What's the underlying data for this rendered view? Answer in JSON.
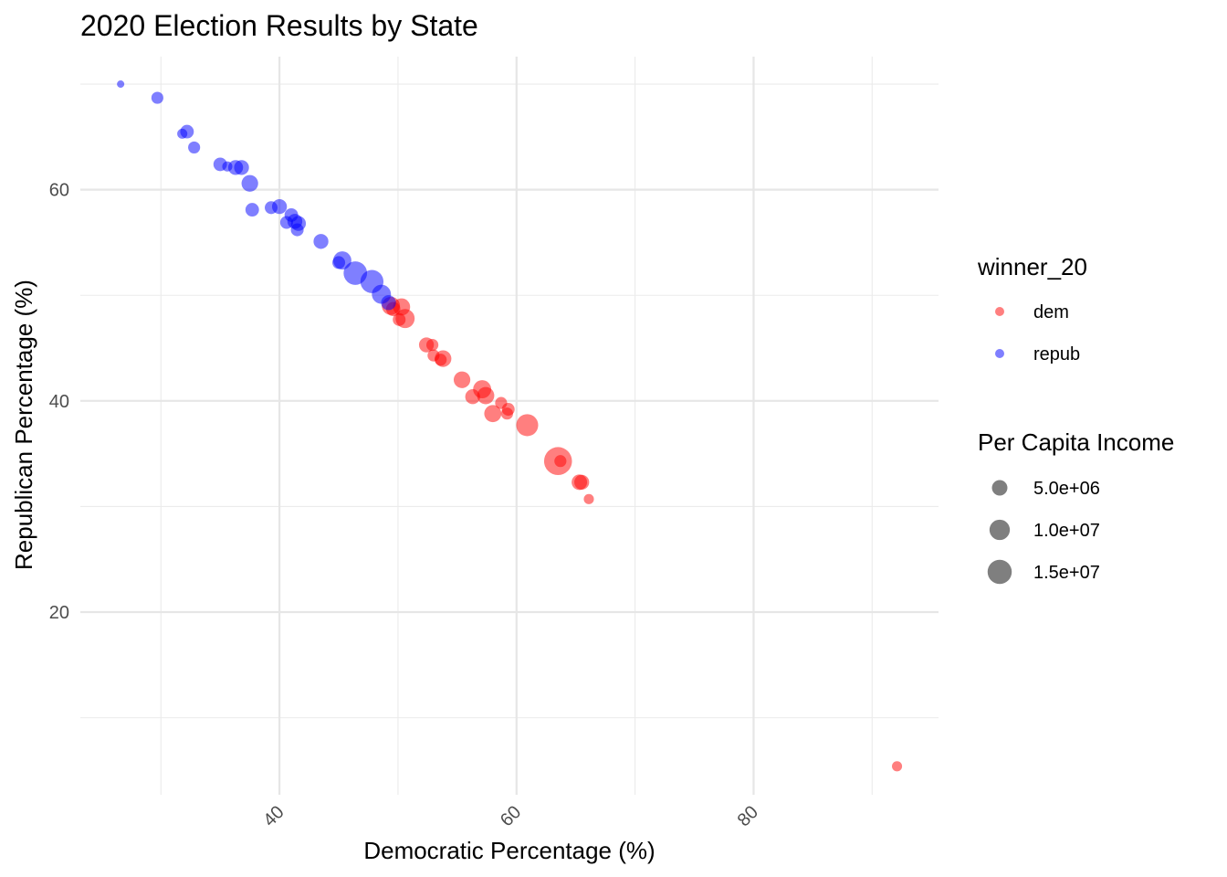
{
  "chart_data": {
    "type": "scatter",
    "title": "2020 Election Results by State",
    "xlabel": "Democratic Percentage (%)",
    "ylabel": "Republican Percentage (%)",
    "xlim": [
      23.2,
      95.6
    ],
    "ylim": [
      2.7,
      72.6
    ],
    "x_ticks": [
      40,
      60,
      80
    ],
    "x_tick_labels": [
      "40",
      "60",
      "80"
    ],
    "x_minor_ticks": [
      30,
      50,
      70,
      90
    ],
    "y_ticks": [
      20,
      40,
      60
    ],
    "y_tick_labels": [
      "20",
      "40",
      "60"
    ],
    "y_minor_ticks": [
      10,
      30,
      50,
      70
    ],
    "grid": true,
    "size_unit": "millions",
    "color_legend": {
      "title": "winner_20",
      "placement": "right",
      "entries": [
        {
          "label": "dem",
          "color": "#ff0000"
        },
        {
          "label": "repub",
          "color": "#0000ff"
        }
      ]
    },
    "size_legend": {
      "title": "Per Capita Income",
      "placement": "right",
      "entries": [
        {
          "label": "5.0e+06",
          "value": 5
        },
        {
          "label": "1.0e+07",
          "value": 10
        },
        {
          "label": "1.5e+07",
          "value": 15
        }
      ]
    },
    "series": [
      {
        "name": "dem",
        "color": "#ff0000",
        "points": [
          {
            "x": 49.4,
            "y": 49.0,
            "size": 7.5
          },
          {
            "x": 50.3,
            "y": 48.9,
            "size": 6.5
          },
          {
            "x": 50.6,
            "y": 47.8,
            "size": 8.5
          },
          {
            "x": 50.1,
            "y": 47.7,
            "size": 3.0
          },
          {
            "x": 49.6,
            "y": 48.7,
            "size": 4.0
          },
          {
            "x": 52.4,
            "y": 45.3,
            "size": 4.5
          },
          {
            "x": 52.9,
            "y": 45.3,
            "size": 2.5
          },
          {
            "x": 53.0,
            "y": 44.3,
            "size": 2.5
          },
          {
            "x": 53.6,
            "y": 43.9,
            "size": 2.5
          },
          {
            "x": 53.8,
            "y": 44.0,
            "size": 6.0
          },
          {
            "x": 55.4,
            "y": 42.0,
            "size": 6.0
          },
          {
            "x": 56.3,
            "y": 40.4,
            "size": 4.5
          },
          {
            "x": 57.1,
            "y": 41.1,
            "size": 7.5
          },
          {
            "x": 57.4,
            "y": 40.5,
            "size": 6.5
          },
          {
            "x": 58.0,
            "y": 38.8,
            "size": 6.5
          },
          {
            "x": 58.7,
            "y": 39.8,
            "size": 2.5
          },
          {
            "x": 59.3,
            "y": 39.2,
            "size": 3.0
          },
          {
            "x": 59.2,
            "y": 38.8,
            "size": 2.5
          },
          {
            "x": 60.9,
            "y": 37.7,
            "size": 12.0
          },
          {
            "x": 63.5,
            "y": 34.3,
            "size": 21.0
          },
          {
            "x": 63.7,
            "y": 34.3,
            "size": 2.5
          },
          {
            "x": 65.3,
            "y": 32.3,
            "size": 5.0
          },
          {
            "x": 65.5,
            "y": 32.3,
            "size": 4.5
          },
          {
            "x": 66.1,
            "y": 30.7,
            "size": 1.5
          },
          {
            "x": 92.1,
            "y": 5.4,
            "size": 1.5
          }
        ]
      },
      {
        "name": "repub",
        "color": "#0000ff",
        "points": [
          {
            "x": 26.6,
            "y": 70.0,
            "size": 0.5
          },
          {
            "x": 29.7,
            "y": 68.7,
            "size": 2.5
          },
          {
            "x": 31.8,
            "y": 65.3,
            "size": 1.5
          },
          {
            "x": 32.2,
            "y": 65.5,
            "size": 3.5
          },
          {
            "x": 32.8,
            "y": 64.0,
            "size": 2.5
          },
          {
            "x": 35.0,
            "y": 62.4,
            "size": 3.5
          },
          {
            "x": 35.6,
            "y": 62.2,
            "size": 1.5
          },
          {
            "x": 36.3,
            "y": 62.1,
            "size": 4.5
          },
          {
            "x": 36.8,
            "y": 62.1,
            "size": 4.5
          },
          {
            "x": 37.5,
            "y": 60.6,
            "size": 6.0
          },
          {
            "x": 37.7,
            "y": 58.1,
            "size": 3.5
          },
          {
            "x": 39.3,
            "y": 58.3,
            "size": 3.0
          },
          {
            "x": 40.0,
            "y": 58.4,
            "size": 4.5
          },
          {
            "x": 40.6,
            "y": 56.9,
            "size": 3.0
          },
          {
            "x": 41.0,
            "y": 57.6,
            "size": 3.5
          },
          {
            "x": 41.3,
            "y": 57.0,
            "size": 4.5
          },
          {
            "x": 41.6,
            "y": 56.8,
            "size": 4.5
          },
          {
            "x": 41.5,
            "y": 56.2,
            "size": 3.0
          },
          {
            "x": 43.5,
            "y": 55.1,
            "size": 4.5
          },
          {
            "x": 45.0,
            "y": 53.1,
            "size": 3.0
          },
          {
            "x": 45.3,
            "y": 53.3,
            "size": 7.5
          },
          {
            "x": 46.4,
            "y": 52.1,
            "size": 14.0
          },
          {
            "x": 47.8,
            "y": 51.3,
            "size": 13.5
          },
          {
            "x": 48.6,
            "y": 50.1,
            "size": 8.5
          },
          {
            "x": 49.2,
            "y": 49.3,
            "size": 4.5
          }
        ]
      }
    ]
  }
}
